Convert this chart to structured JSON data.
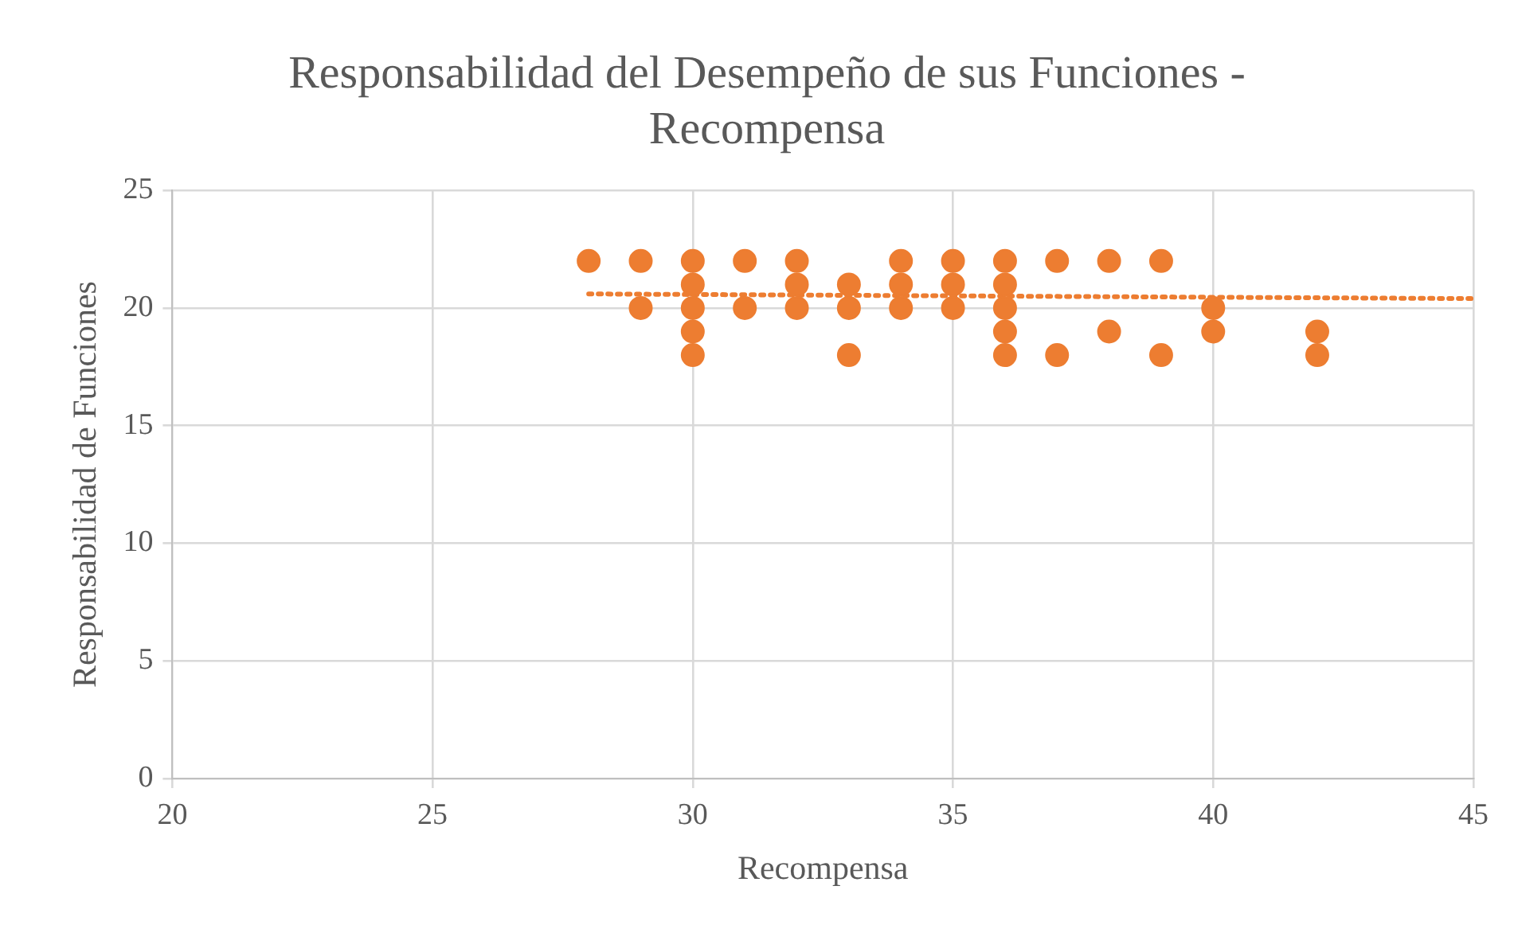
{
  "chart_data": {
    "type": "scatter",
    "title": "Responsabilidad del Desempeño de sus Funciones - Recompensa",
    "xlabel": "Recompensa",
    "ylabel": "Responsabilidad de Funciones",
    "xlim": [
      20,
      45
    ],
    "xticks": [
      20,
      25,
      30,
      35,
      40,
      45
    ],
    "ylim": [
      0,
      25
    ],
    "yticks": [
      0,
      5,
      10,
      15,
      20,
      25
    ],
    "grid": true,
    "legend": false,
    "marker": "circle",
    "series": [
      {
        "color": "#ed7d31",
        "x": [
          28,
          29,
          29,
          30,
          30,
          30,
          30,
          30,
          31,
          31,
          32,
          32,
          32,
          33,
          33,
          33,
          34,
          34,
          34,
          35,
          35,
          35,
          36,
          36,
          36,
          36,
          36,
          37,
          37,
          38,
          38,
          39,
          39,
          40,
          40,
          42,
          42
        ],
        "values": [
          22,
          22,
          20,
          22,
          21,
          20,
          19,
          18,
          22,
          20,
          22,
          21,
          20,
          21,
          20,
          18,
          22,
          21,
          20,
          22,
          21,
          20,
          22,
          21,
          20,
          19,
          18,
          22,
          18,
          22,
          19,
          22,
          18,
          20,
          19,
          19,
          18
        ]
      },
      {
        "type": "line",
        "color": "#ed7d31",
        "line_style": "dotted",
        "marker": "none",
        "x": [
          28,
          45
        ],
        "values": [
          20.6,
          20.4
        ]
      }
    ]
  }
}
